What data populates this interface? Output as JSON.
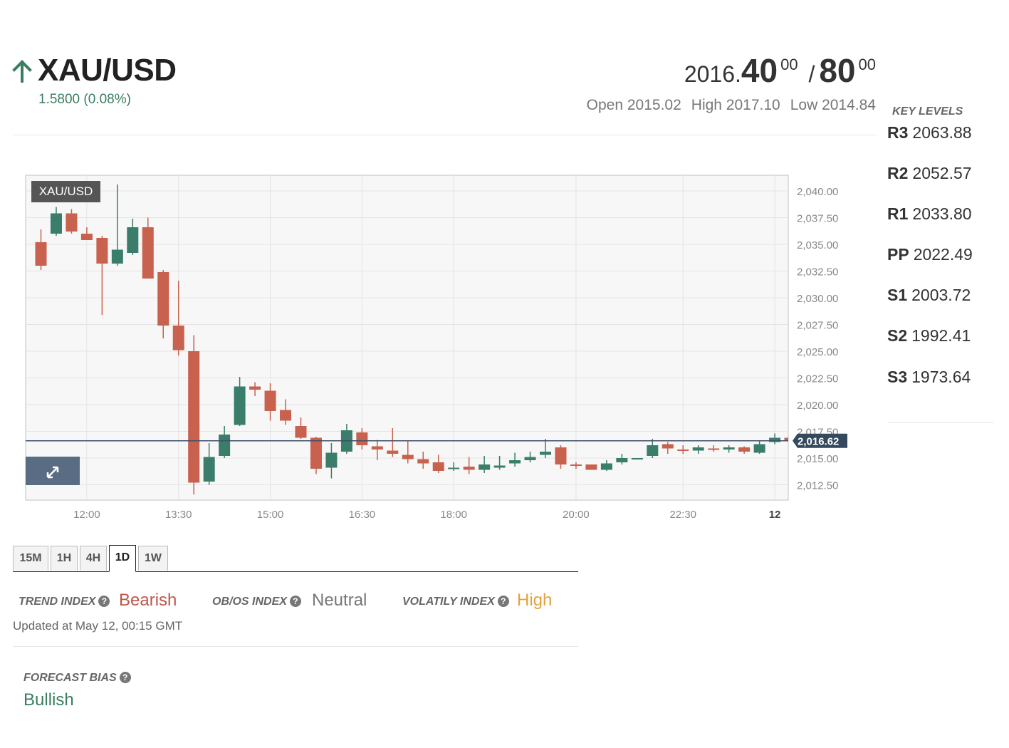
{
  "header": {
    "symbol": "XAU/USD",
    "change": "1.5800 (0.08%)",
    "direction_icon": "arrow-up-icon",
    "up_color": "#3a7d5f"
  },
  "quote": {
    "bid_prefix": "2016.",
    "bid_big": "40",
    "bid_sup": "00",
    "separator": "/",
    "ask_big": "80",
    "ask_sup": "00",
    "open": "Open 2015.02",
    "high": "High 2017.10",
    "low": "Low 2014.84"
  },
  "key_levels": {
    "title": "KEY LEVELS",
    "items": [
      {
        "label": "R3",
        "value": "2063.88"
      },
      {
        "label": "R2",
        "value": "2052.57"
      },
      {
        "label": "R1",
        "value": "2033.80"
      },
      {
        "label": "PP",
        "value": "2022.49"
      },
      {
        "label": "S1",
        "value": "2003.72"
      },
      {
        "label": "S2",
        "value": "1992.41"
      },
      {
        "label": "S3",
        "value": "1973.64"
      }
    ]
  },
  "chart_data": {
    "type": "candlestick",
    "symbol_label": "XAU/USD",
    "current_price": 2016.62,
    "current_price_label": "2,016.62",
    "up_color": "#3a7d6a",
    "down_color": "#c8614d",
    "ylim": [
      2011.0,
      2040.8
    ],
    "y_ticks": [
      "2,040.00",
      "2,037.50",
      "2,035.00",
      "2,032.50",
      "2,030.00",
      "2,027.50",
      "2,025.00",
      "2,022.50",
      "2,020.00",
      "2,017.50",
      "2,015.00",
      "2,012.50"
    ],
    "x_ticks": [
      {
        "label": "12:00",
        "index": 3
      },
      {
        "label": "13:30",
        "index": 9
      },
      {
        "label": "15:00",
        "index": 15
      },
      {
        "label": "16:30",
        "index": 21
      },
      {
        "label": "18:00",
        "index": 27
      },
      {
        "label": "20:00",
        "index": 35
      },
      {
        "label": "22:30",
        "index": 42
      },
      {
        "label": "12",
        "index": 48,
        "bold": true
      }
    ],
    "candles": [
      [
        2035.2,
        2036.4,
        2032.6,
        2033.0
      ],
      [
        2036.0,
        2038.5,
        2035.8,
        2037.9
      ],
      [
        2037.9,
        2038.3,
        2036.0,
        2036.2
      ],
      [
        2036.0,
        2036.6,
        2035.5,
        2035.4
      ],
      [
        2035.6,
        2035.8,
        2028.4,
        2033.2
      ],
      [
        2033.2,
        2040.6,
        2033.0,
        2034.5
      ],
      [
        2034.2,
        2037.4,
        2034.0,
        2036.6
      ],
      [
        2036.6,
        2037.5,
        2031.8,
        2031.8
      ],
      [
        2032.4,
        2032.6,
        2026.2,
        2027.4
      ],
      [
        2027.4,
        2031.6,
        2024.6,
        2025.1
      ],
      [
        2025.0,
        2026.5,
        2011.6,
        2012.7
      ],
      [
        2012.8,
        2016.4,
        2012.5,
        2015.1
      ],
      [
        2015.2,
        2018.0,
        2015.0,
        2017.2
      ],
      [
        2018.1,
        2022.6,
        2018.0,
        2021.7
      ],
      [
        2021.7,
        2022.1,
        2020.8,
        2021.4
      ],
      [
        2021.3,
        2022.0,
        2018.5,
        2019.4
      ],
      [
        2019.5,
        2020.5,
        2018.1,
        2018.5
      ],
      [
        2018.0,
        2018.8,
        2016.8,
        2016.9
      ],
      [
        2016.9,
        2017.0,
        2013.5,
        2014.0
      ],
      [
        2014.1,
        2016.4,
        2013.1,
        2015.5
      ],
      [
        2015.6,
        2018.2,
        2015.4,
        2017.6
      ],
      [
        2017.4,
        2017.8,
        2015.8,
        2016.2
      ],
      [
        2016.1,
        2016.7,
        2014.8,
        2015.8
      ],
      [
        2015.7,
        2017.8,
        2015.1,
        2015.4
      ],
      [
        2015.3,
        2016.6,
        2014.5,
        2014.9
      ],
      [
        2014.9,
        2015.6,
        2014.0,
        2014.5
      ],
      [
        2014.6,
        2015.3,
        2013.6,
        2013.8
      ],
      [
        2014.0,
        2014.6,
        2013.8,
        2014.1
      ],
      [
        2014.2,
        2015.1,
        2013.5,
        2013.9
      ],
      [
        2013.9,
        2015.2,
        2013.6,
        2014.4
      ],
      [
        2014.1,
        2015.2,
        2013.9,
        2014.3
      ],
      [
        2014.5,
        2015.5,
        2014.2,
        2014.8
      ],
      [
        2014.8,
        2015.6,
        2014.6,
        2015.1
      ],
      [
        2015.3,
        2016.8,
        2015.0,
        2015.6
      ],
      [
        2016.0,
        2016.2,
        2014.0,
        2014.4
      ],
      [
        2014.4,
        2014.6,
        2014.0,
        2014.3
      ],
      [
        2014.4,
        2014.4,
        2013.9,
        2013.9
      ],
      [
        2013.9,
        2014.8,
        2013.8,
        2014.5
      ],
      [
        2014.6,
        2015.4,
        2014.4,
        2015.0
      ],
      [
        2015.0,
        2015.0,
        2014.9,
        2015.0
      ],
      [
        2015.2,
        2016.8,
        2015.0,
        2016.2
      ],
      [
        2016.3,
        2016.5,
        2015.4,
        2015.9
      ],
      [
        2015.8,
        2016.2,
        2015.4,
        2015.7
      ],
      [
        2015.7,
        2016.2,
        2015.4,
        2016.0
      ],
      [
        2015.9,
        2016.2,
        2015.6,
        2015.8
      ],
      [
        2015.8,
        2016.2,
        2015.5,
        2016.0
      ],
      [
        2016.0,
        2016.1,
        2015.4,
        2015.6
      ],
      [
        2015.5,
        2016.6,
        2015.4,
        2016.3
      ],
      [
        2016.5,
        2017.3,
        2016.3,
        2016.9
      ],
      [
        2016.9,
        2017.0,
        2016.5,
        2016.6
      ]
    ]
  },
  "timeframes": {
    "items": [
      "15M",
      "1H",
      "4H",
      "1D",
      "1W"
    ],
    "active": "1D"
  },
  "indices": {
    "trend_label": "TREND INDEX",
    "trend_value": "Bearish",
    "trend_color": "#c0564a",
    "obos_label": "OB/OS INDEX",
    "obos_value": "Neutral",
    "obos_color": "#777777",
    "volatility_label": "VOLATILY INDEX",
    "volatility_value": "High",
    "volatility_color": "#e0a33c",
    "help_icon": "question-circle-icon",
    "help_glyph": "?",
    "updated": "Updated at May 12, 00:15 GMT"
  },
  "forecast": {
    "label": "FORECAST BIAS",
    "value": "Bullish",
    "color": "#3a7d5f"
  }
}
